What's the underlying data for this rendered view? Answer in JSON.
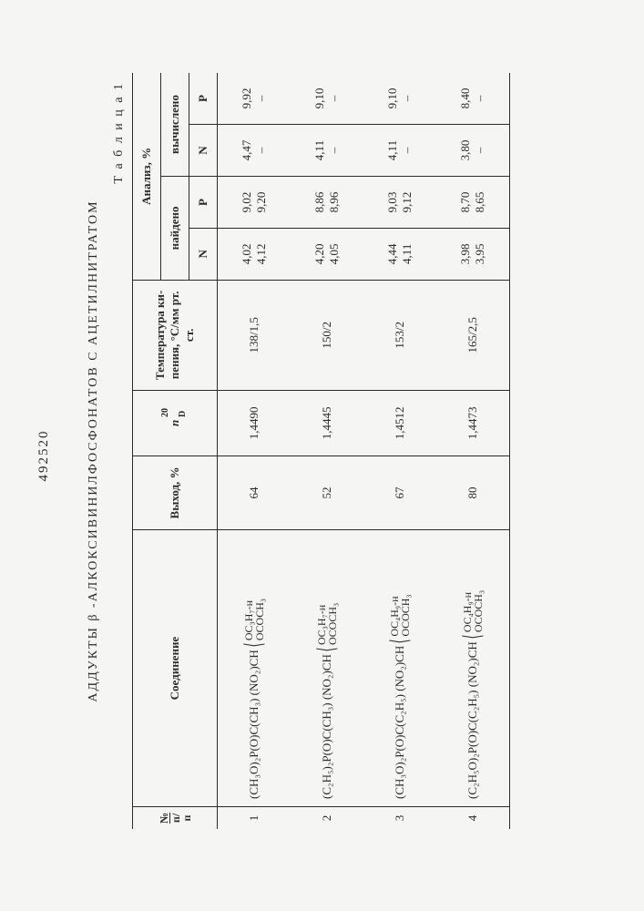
{
  "docnum": "492520",
  "caption": "АДДУКТЫ  β -АЛКОКСИВИНИЛФОСФОНАТОВ С АЦЕТИЛНИТРАТОМ",
  "table_label": "Т а б л и ц а 1",
  "headers": {
    "no_top": "№",
    "no_bot": "п/п",
    "compound": "Соединение",
    "yield": "Выход, %",
    "nd": "n",
    "nd_sup": "20",
    "nd_sub": "D",
    "bp_top": "Температура ки-",
    "bp_bot": "пения, °С/мм рт.\nст.",
    "analysis": "Анализ, %",
    "found": "найдено",
    "calc": "вычислено",
    "N": "N",
    "P": "P"
  },
  "rows": [
    {
      "no": "1",
      "formula_main": "(CH₃O)₂P(O)C(CH₃) (NO₂)CH",
      "branch_top": "OC₃H₇-н",
      "branch_bot": "OCOCH₃",
      "yield": "64",
      "nd": "1,4490",
      "bp": "138/1,5",
      "found_N": [
        "4,02",
        "4,12"
      ],
      "found_P": [
        "9,02",
        "9,20"
      ],
      "calc_N": [
        "4,47",
        "–"
      ],
      "calc_P": [
        "9,92",
        "–"
      ]
    },
    {
      "no": "2",
      "formula_main": "(C₂H₅)₂P(O)C(CH₃) (NO₂)CH",
      "branch_top": "OC₃H₇-н",
      "branch_bot": "OCOCH₃",
      "yield": "52",
      "nd": "1,4445",
      "bp": "150/2",
      "found_N": [
        "4,20",
        "4,05"
      ],
      "found_P": [
        "8,86",
        "8,96"
      ],
      "calc_N": [
        "4,11",
        "–"
      ],
      "calc_P": [
        "9,10",
        "–"
      ]
    },
    {
      "no": "3",
      "formula_main": "(CH₃O)₂P(O)C(C₂H₅) (NO₂)CH",
      "branch_top": "OC₄H₉-н",
      "branch_bot": "OCOCH₃",
      "yield": "67",
      "nd": "1,4512",
      "bp": "153/2",
      "found_N": [
        "4,44",
        "4,11"
      ],
      "found_P": [
        "9,03",
        "9,12"
      ],
      "calc_N": [
        "4,11",
        "–"
      ],
      "calc_P": [
        "9,10",
        "–"
      ]
    },
    {
      "no": "4",
      "formula_main": "(C₂H₅O)₂P(O)C(C₂H₅) (NO₂)CH",
      "branch_top": "OC₄H₉-н",
      "branch_bot": "OCOCH₃",
      "yield": "80",
      "nd": "1,4473",
      "bp": "165/2,5",
      "found_N": [
        "3,98",
        "3,95"
      ],
      "found_P": [
        "8,70",
        "8,65"
      ],
      "calc_N": [
        "3,80",
        "–"
      ],
      "calc_P": [
        "8,40",
        "–"
      ]
    }
  ]
}
